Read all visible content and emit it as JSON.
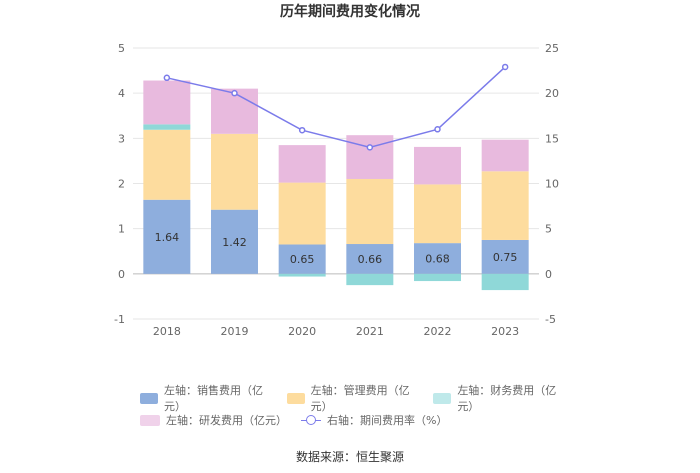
{
  "chart_data": {
    "type": "bar",
    "title": "历年期间费用变化情况",
    "categories": [
      "2018",
      "2019",
      "2020",
      "2021",
      "2022",
      "2023"
    ],
    "left_axis": {
      "ylim": [
        -1,
        5
      ],
      "ticks": [
        "-1",
        "0",
        "1",
        "2",
        "3",
        "4",
        "5"
      ],
      "tick_values": [
        -1,
        0,
        1,
        2,
        3,
        4,
        5
      ]
    },
    "right_axis": {
      "ylim": [
        -5,
        25
      ],
      "ticks": [
        "-5",
        "0",
        "5",
        "10",
        "15",
        "20",
        "25"
      ],
      "tick_values": [
        -5,
        0,
        5,
        10,
        15,
        20,
        25
      ]
    },
    "series": [
      {
        "name": "左轴：销售费用（亿元）",
        "type": "bar",
        "color": "#8eaedd",
        "values": [
          1.64,
          1.42,
          0.65,
          0.66,
          0.68,
          0.75
        ],
        "labels": [
          "1.64",
          "1.42",
          "0.65",
          "0.66",
          "0.68",
          "0.75"
        ]
      },
      {
        "name": "左轴：管理费用（亿元）",
        "type": "bar",
        "color": "#fddc9e",
        "values": [
          1.55,
          1.68,
          1.37,
          1.44,
          1.3,
          1.52
        ]
      },
      {
        "name": "左轴：财务费用（亿元）",
        "type": "bar",
        "color": "#8fd8d8",
        "values": [
          0.12,
          0.0,
          -0.06,
          -0.25,
          -0.16,
          -0.36
        ]
      },
      {
        "name": "左轴：研发费用（亿元）",
        "type": "bar",
        "color": "#e8bade",
        "values": [
          0.97,
          1.0,
          0.83,
          0.97,
          0.83,
          0.7
        ]
      },
      {
        "name": "右轴：期间费用率（%）",
        "type": "line",
        "axis": "right",
        "color": "#7b7bea",
        "values": [
          21.7,
          20.0,
          15.9,
          14.0,
          16.0,
          22.9
        ]
      }
    ]
  },
  "source": "数据来源：恒生聚源"
}
